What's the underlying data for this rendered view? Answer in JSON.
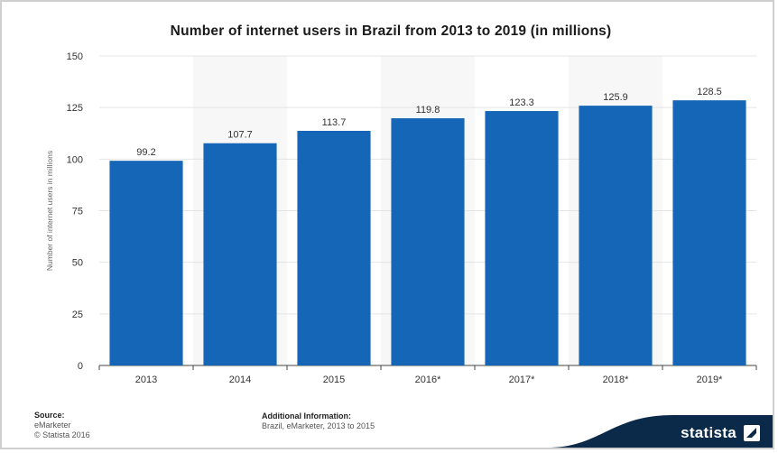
{
  "chart_data": {
    "type": "bar",
    "title": "Number of internet users in Brazil from 2013 to 2019 (in millions)",
    "ylabel": "Number of internet users in millions",
    "xlabel": "",
    "categories": [
      "2013",
      "2014",
      "2015",
      "2016*",
      "2017*",
      "2018*",
      "2019*"
    ],
    "values": [
      99.2,
      107.7,
      113.7,
      119.8,
      123.3,
      125.9,
      128.5
    ],
    "data_labels": [
      "99.2",
      "107.7",
      "113.7",
      "119.8",
      "123.3",
      "125.9",
      "128.5"
    ],
    "ylim": [
      0,
      150
    ],
    "yticks": [
      "0",
      "25",
      "50",
      "75",
      "100",
      "125",
      "150"
    ],
    "ytick_values": [
      0,
      25,
      50,
      75,
      100,
      125,
      150
    ],
    "grid": true,
    "bar_color": "#1566b7"
  },
  "footer": {
    "source_heading": "Source:",
    "source_name": "eMarketer",
    "copyright": "© Statista 2016",
    "info_heading": "Additional Information:",
    "info_text": "Brazil, eMarketer, 2013 to 2015"
  },
  "brand": {
    "name": "statista",
    "color": "#0b2a4a"
  }
}
